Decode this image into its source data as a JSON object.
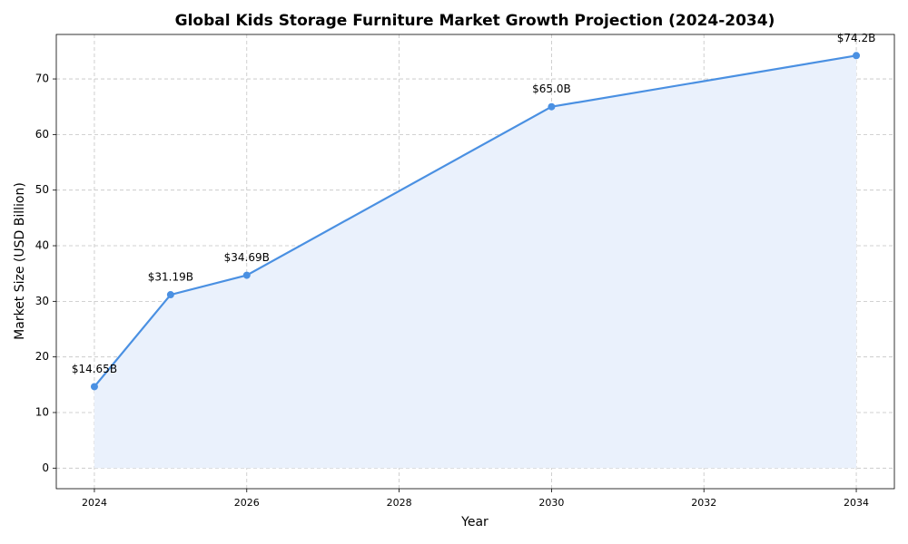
{
  "chart_data": {
    "type": "line",
    "title": "Global Kids Storage Furniture Market Growth Projection (2024-2034)",
    "x_label": "Year",
    "y_label": "Market Size (USD Billion)",
    "x": [
      2024,
      2025,
      2026,
      2030,
      2034
    ],
    "series": [
      {
        "name": "Market Size",
        "color": "#4a90e2",
        "values": [
          14.65,
          31.19,
          34.69,
          65.0,
          74.2
        ],
        "value_labels": [
          "$14.65B",
          "$31.19B",
          "$34.69B",
          "$65.0B",
          "$74.2B"
        ]
      }
    ],
    "xlim": [
      2023.5,
      2034.5
    ],
    "xticks": [
      2024,
      2026,
      2028,
      2030,
      2032,
      2034
    ],
    "ylim": [
      -3.7,
      78.0
    ],
    "yticks": [
      0,
      10,
      20,
      30,
      40,
      50,
      60,
      70
    ],
    "grid": true,
    "area_fill": "#eaf1fc"
  }
}
